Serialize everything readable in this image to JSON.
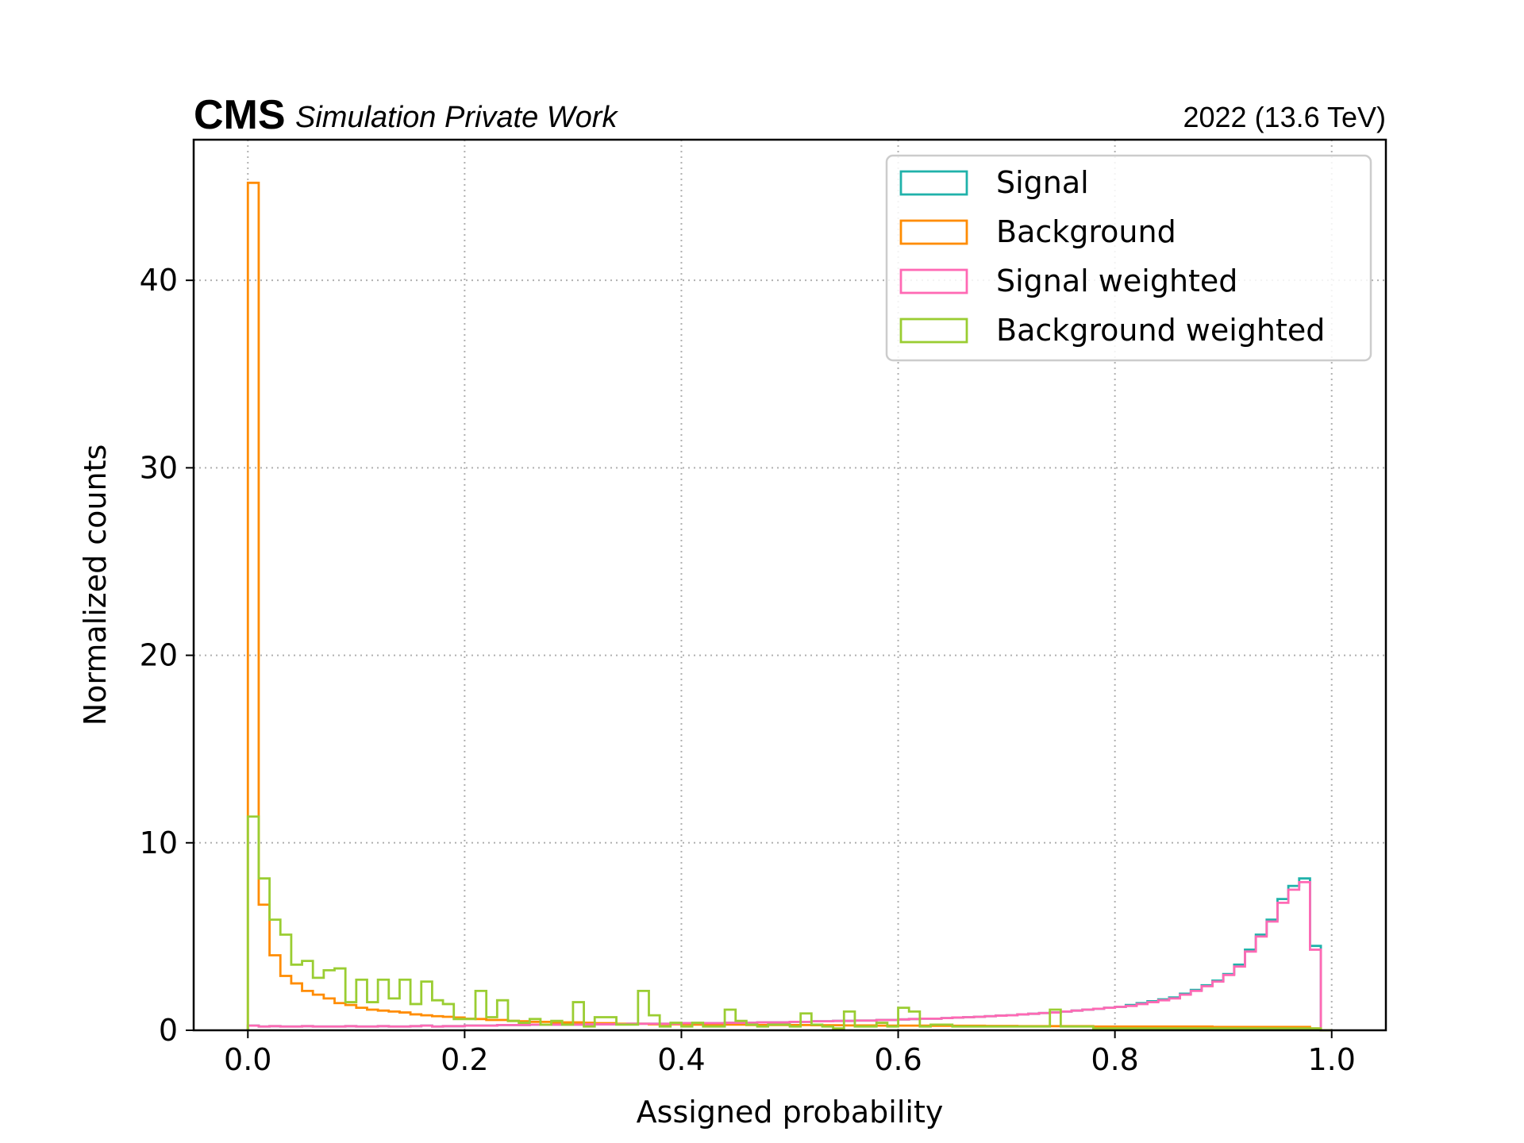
{
  "header": {
    "experiment": "CMS",
    "label": "Simulation Private Work",
    "lumi": "2022 (13.6 TeV)"
  },
  "chart_data": {
    "type": "step-histogram",
    "xlabel": "Assigned probability",
    "ylabel": "Normalized counts",
    "xlim": [
      -0.05,
      1.05
    ],
    "ylim": [
      0,
      47.5
    ],
    "xticks": [
      "0.0",
      "0.2",
      "0.4",
      "0.6",
      "0.8",
      "1.0"
    ],
    "yticks": [
      "0",
      "10",
      "20",
      "30",
      "40"
    ],
    "grid": true,
    "legend_position": "top-right",
    "bins": {
      "count": 100,
      "range": [
        0.0,
        1.0
      ]
    },
    "series": [
      {
        "name": "Signal",
        "color": "#20b2aa",
        "values": [
          0.25,
          0.2,
          0.22,
          0.2,
          0.2,
          0.22,
          0.2,
          0.2,
          0.2,
          0.22,
          0.2,
          0.2,
          0.22,
          0.2,
          0.2,
          0.22,
          0.25,
          0.2,
          0.22,
          0.22,
          0.25,
          0.25,
          0.25,
          0.28,
          0.28,
          0.28,
          0.3,
          0.3,
          0.3,
          0.3,
          0.3,
          0.32,
          0.32,
          0.32,
          0.32,
          0.35,
          0.35,
          0.35,
          0.35,
          0.35,
          0.38,
          0.38,
          0.38,
          0.38,
          0.4,
          0.4,
          0.4,
          0.42,
          0.42,
          0.42,
          0.45,
          0.45,
          0.48,
          0.48,
          0.5,
          0.5,
          0.52,
          0.52,
          0.55,
          0.55,
          0.58,
          0.6,
          0.62,
          0.62,
          0.65,
          0.68,
          0.7,
          0.72,
          0.75,
          0.78,
          0.8,
          0.85,
          0.88,
          0.92,
          0.95,
          1.0,
          1.05,
          1.1,
          1.15,
          1.2,
          1.25,
          1.35,
          1.45,
          1.55,
          1.65,
          1.75,
          1.95,
          2.15,
          2.4,
          2.65,
          3.0,
          3.5,
          4.3,
          5.1,
          5.9,
          7.0,
          7.7,
          8.1,
          4.5,
          0.0
        ]
      },
      {
        "name": "Background",
        "color": "#ff8c00",
        "values": [
          45.2,
          6.7,
          4.0,
          2.9,
          2.5,
          2.1,
          1.9,
          1.7,
          1.45,
          1.35,
          1.2,
          1.1,
          1.05,
          1.0,
          0.95,
          0.85,
          0.8,
          0.75,
          0.72,
          0.68,
          0.62,
          0.6,
          0.55,
          0.55,
          0.5,
          0.48,
          0.45,
          0.45,
          0.42,
          0.42,
          0.42,
          0.4,
          0.38,
          0.38,
          0.35,
          0.35,
          0.35,
          0.32,
          0.32,
          0.32,
          0.32,
          0.3,
          0.3,
          0.3,
          0.3,
          0.3,
          0.28,
          0.28,
          0.28,
          0.28,
          0.28,
          0.28,
          0.27,
          0.27,
          0.27,
          0.26,
          0.26,
          0.26,
          0.25,
          0.25,
          0.25,
          0.25,
          0.25,
          0.24,
          0.24,
          0.24,
          0.24,
          0.24,
          0.23,
          0.23,
          0.23,
          0.22,
          0.22,
          0.22,
          0.22,
          0.22,
          0.22,
          0.22,
          0.2,
          0.2,
          0.2,
          0.2,
          0.2,
          0.2,
          0.2,
          0.2,
          0.2,
          0.2,
          0.2,
          0.18,
          0.18,
          0.18,
          0.18,
          0.18,
          0.18,
          0.18,
          0.18,
          0.18,
          0.1,
          0.0
        ]
      },
      {
        "name": "Signal weighted",
        "color": "#ff69b4",
        "values": [
          0.25,
          0.2,
          0.22,
          0.2,
          0.2,
          0.22,
          0.2,
          0.2,
          0.2,
          0.22,
          0.2,
          0.2,
          0.22,
          0.2,
          0.2,
          0.22,
          0.25,
          0.2,
          0.22,
          0.22,
          0.25,
          0.25,
          0.25,
          0.28,
          0.28,
          0.28,
          0.3,
          0.3,
          0.3,
          0.3,
          0.3,
          0.32,
          0.32,
          0.32,
          0.32,
          0.35,
          0.35,
          0.35,
          0.35,
          0.35,
          0.38,
          0.38,
          0.38,
          0.38,
          0.4,
          0.4,
          0.4,
          0.42,
          0.42,
          0.42,
          0.45,
          0.45,
          0.48,
          0.48,
          0.5,
          0.5,
          0.52,
          0.52,
          0.55,
          0.55,
          0.58,
          0.6,
          0.62,
          0.62,
          0.65,
          0.68,
          0.7,
          0.72,
          0.75,
          0.78,
          0.8,
          0.85,
          0.88,
          0.92,
          0.95,
          1.0,
          1.05,
          1.1,
          1.15,
          1.2,
          1.25,
          1.3,
          1.4,
          1.5,
          1.6,
          1.7,
          1.9,
          2.1,
          2.35,
          2.6,
          2.95,
          3.4,
          4.2,
          5.0,
          5.8,
          6.8,
          7.5,
          7.9,
          4.3,
          0.0
        ]
      },
      {
        "name": "Background weighted",
        "color": "#9acd32",
        "values": [
          11.4,
          8.1,
          5.9,
          5.1,
          3.5,
          3.7,
          2.8,
          3.2,
          3.3,
          1.5,
          2.7,
          1.5,
          2.7,
          1.7,
          2.7,
          1.4,
          2.6,
          1.6,
          1.4,
          0.6,
          0.6,
          2.1,
          0.7,
          1.6,
          0.5,
          0.4,
          0.6,
          0.3,
          0.5,
          0.3,
          1.5,
          0.2,
          0.7,
          0.7,
          0.3,
          0.3,
          2.1,
          0.8,
          0.2,
          0.4,
          0.2,
          0.4,
          0.2,
          0.2,
          1.1,
          0.5,
          0.3,
          0.2,
          0.3,
          0.3,
          0.2,
          0.9,
          0.3,
          0.2,
          0.1,
          1.0,
          0.2,
          0.2,
          0.4,
          0.2,
          1.2,
          1.0,
          0.2,
          0.3,
          0.3,
          0.2,
          0.2,
          0.2,
          0.2,
          0.2,
          0.2,
          0.2,
          0.2,
          0.2,
          1.1,
          0.2,
          0.2,
          0.2,
          0.1,
          0.1,
          0.1,
          0.1,
          0.1,
          0.1,
          0.1,
          0.1,
          0.1,
          0.1,
          0.1,
          0.1,
          0.1,
          0.1,
          0.1,
          0.1,
          0.1,
          0.1,
          0.1,
          0.1,
          0.1,
          0.0
        ]
      }
    ]
  }
}
